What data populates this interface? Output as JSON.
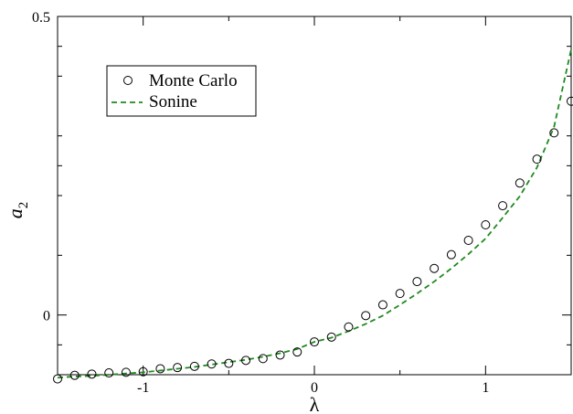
{
  "chart_data": {
    "type": "scatter",
    "x_label": "λ",
    "y_label_base": "a",
    "y_label_sub": "2",
    "xlim": [
      -1.5,
      1.5
    ],
    "ylim": [
      -0.1,
      0.5
    ],
    "x_ticks": [
      -1,
      0,
      1
    ],
    "x_tick_labels": [
      "-1",
      "0",
      "1"
    ],
    "x_minor_ticks": [
      -1.5,
      -0.5,
      0.5,
      1.5
    ],
    "y_ticks": [
      0,
      0.5
    ],
    "y_tick_labels": [
      "0",
      "0.5"
    ],
    "y_minor_ticks": [
      -0.05,
      0.1,
      0.2,
      0.25,
      0.3,
      0.4,
      0.45
    ],
    "grid": false,
    "legend_position": "top-left",
    "series": [
      {
        "name": "Monte Carlo",
        "kind": "scatter",
        "marker": "open-circle",
        "color": "#000000",
        "x": [
          -1.5,
          -1.4,
          -1.3,
          -1.2,
          -1.1,
          -1.0,
          -0.9,
          -0.8,
          -0.7,
          -0.6,
          -0.5,
          -0.4,
          -0.3,
          -0.2,
          -0.1,
          0.0,
          0.1,
          0.2,
          0.3,
          0.4,
          0.5,
          0.6,
          0.7,
          0.8,
          0.9,
          1.0,
          1.1,
          1.2,
          1.3,
          1.4,
          1.5
        ],
        "y": [
          -0.107,
          -0.101,
          -0.099,
          -0.097,
          -0.096,
          -0.095,
          -0.09,
          -0.088,
          -0.086,
          -0.082,
          -0.081,
          -0.076,
          -0.073,
          -0.067,
          -0.062,
          -0.045,
          -0.037,
          -0.02,
          -0.001,
          0.017,
          0.036,
          0.056,
          0.078,
          0.101,
          0.125,
          0.151,
          0.183,
          0.221,
          0.261,
          0.305,
          0.358
        ]
      },
      {
        "name": "Sonine",
        "kind": "line",
        "dash": "dashed",
        "color": "#1f8a1f",
        "x": [
          -1.5,
          -1.4,
          -1.3,
          -1.2,
          -1.1,
          -1.0,
          -0.9,
          -0.8,
          -0.7,
          -0.6,
          -0.5,
          -0.4,
          -0.3,
          -0.2,
          -0.1,
          0.0,
          0.1,
          0.2,
          0.3,
          0.4,
          0.5,
          0.6,
          0.7,
          0.8,
          0.9,
          1.0,
          1.1,
          1.2,
          1.3,
          1.4,
          1.5
        ],
        "y": [
          -0.105,
          -0.103,
          -0.102,
          -0.1,
          -0.098,
          -0.096,
          -0.093,
          -0.09,
          -0.087,
          -0.083,
          -0.079,
          -0.075,
          -0.07,
          -0.064,
          -0.057,
          -0.045,
          -0.038,
          -0.027,
          -0.015,
          -0.001,
          0.017,
          0.036,
          0.056,
          0.078,
          0.102,
          0.128,
          0.163,
          0.199,
          0.247,
          0.315,
          0.445
        ]
      }
    ]
  }
}
